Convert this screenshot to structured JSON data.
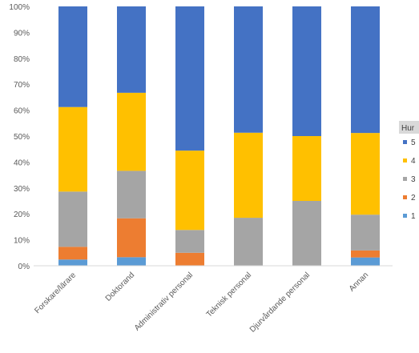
{
  "chart_data": {
    "type": "bar",
    "stacked": true,
    "percent_stacked": true,
    "categories": [
      "Forskare/lärare",
      "Doktorand",
      "Administrativ personal",
      "Teknisk personal",
      "Djurvårdande personal",
      "Annan"
    ],
    "series": [
      {
        "name": "1",
        "color": "#5b9bd5",
        "values": [
          2.4,
          3.3,
          0,
          0,
          0,
          3.2
        ]
      },
      {
        "name": "2",
        "color": "#ed7d31",
        "values": [
          4.9,
          15.0,
          5.0,
          0,
          0,
          2.7
        ]
      },
      {
        "name": "3",
        "color": "#a5a5a5",
        "values": [
          21.3,
          18.3,
          8.8,
          18.5,
          25.0,
          13.8
        ]
      },
      {
        "name": "4",
        "color": "#ffc000",
        "values": [
          32.6,
          30.1,
          30.6,
          32.8,
          25.0,
          31.5
        ]
      },
      {
        "name": "5",
        "color": "#4472c4",
        "values": [
          38.8,
          33.3,
          55.6,
          48.7,
          50.0,
          48.8
        ]
      }
    ],
    "yticks": [
      "0%",
      "10%",
      "20%",
      "30%",
      "40%",
      "50%",
      "60%",
      "70%",
      "80%",
      "90%",
      "100%"
    ],
    "ylim": [
      0,
      100
    ],
    "legend_title": "Hur",
    "legend_position": "right",
    "grid": false
  }
}
